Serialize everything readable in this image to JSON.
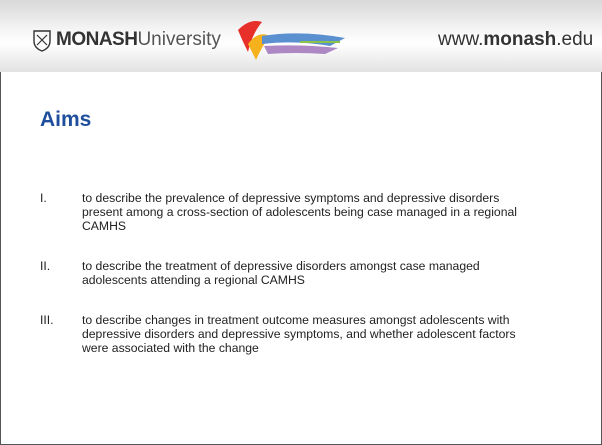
{
  "header": {
    "logo": "MONASH",
    "logo_sub": "University",
    "url_prefix": "www.",
    "url_main": "monash",
    "url_suffix": ".edu"
  },
  "title": "Aims",
  "items": [
    {
      "numeral": "I.",
      "text": "to describe the prevalence of depressive symptoms and depressive disorders present among a cross-section of adolescents being case managed in a regional CAMHS"
    },
    {
      "numeral": "II.",
      "text": "to describe the treatment of depressive disorders amongst case managed adolescents attending a regional CAMHS"
    },
    {
      "numeral": "III.",
      "text": "to describe changes in treatment outcome measures amongst adolescents with depressive disorders and depressive symptoms, and whether adolescent factors were associated with the change"
    }
  ]
}
